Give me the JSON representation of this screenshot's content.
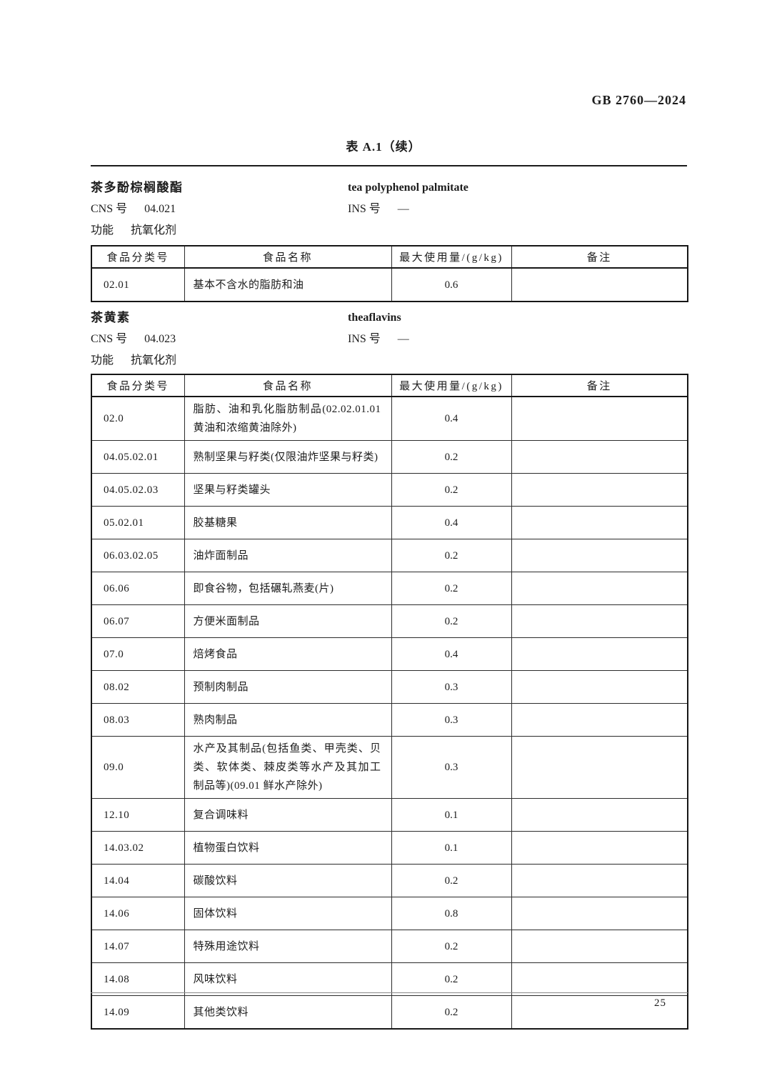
{
  "page": {
    "doc_code": "GB 2760—2024",
    "table_title": "表 A.1（续）",
    "page_number": "25"
  },
  "table_headers": [
    "食品分类号",
    "食品名称",
    "最大使用量/(g/kg)",
    "备注"
  ],
  "sections": [
    {
      "name_zh": "茶多酚棕榈酸酯",
      "name_en": "tea polyphenol palmitate",
      "cns_label": "CNS 号",
      "cns_value": "04.021",
      "ins_label": "INS 号",
      "ins_value": "—",
      "function_label": "功能",
      "function_value": "抗氧化剂",
      "rows": [
        {
          "code": "02.01",
          "food": "基本不含水的脂肪和油",
          "max": "0.6",
          "note": ""
        }
      ]
    },
    {
      "name_zh": "茶黄素",
      "name_en": "theaflavins",
      "cns_label": "CNS 号",
      "cns_value": "04.023",
      "ins_label": "INS 号",
      "ins_value": "—",
      "function_label": "功能",
      "function_value": "抗氧化剂",
      "rows": [
        {
          "code": "02.0",
          "food": "脂肪、油和乳化脂肪制品(02.02.01.01 黄油和浓缩黄油除外)",
          "max": "0.4",
          "note": ""
        },
        {
          "code": "04.05.02.01",
          "food": "熟制坚果与籽类(仅限油炸坚果与籽类)",
          "max": "0.2",
          "note": ""
        },
        {
          "code": "04.05.02.03",
          "food": "坚果与籽类罐头",
          "max": "0.2",
          "note": ""
        },
        {
          "code": "05.02.01",
          "food": "胶基糖果",
          "max": "0.4",
          "note": ""
        },
        {
          "code": "06.03.02.05",
          "food": "油炸面制品",
          "max": "0.2",
          "note": ""
        },
        {
          "code": "06.06",
          "food": "即食谷物，包括碾轧燕麦(片)",
          "max": "0.2",
          "note": ""
        },
        {
          "code": "06.07",
          "food": "方便米面制品",
          "max": "0.2",
          "note": ""
        },
        {
          "code": "07.0",
          "food": "焙烤食品",
          "max": "0.4",
          "note": ""
        },
        {
          "code": "08.02",
          "food": "预制肉制品",
          "max": "0.3",
          "note": ""
        },
        {
          "code": "08.03",
          "food": "熟肉制品",
          "max": "0.3",
          "note": ""
        },
        {
          "code": "09.0",
          "food": "水产及其制品(包括鱼类、甲壳类、贝类、软体类、棘皮类等水产及其加工制品等)(09.01 鲜水产除外)",
          "max": "0.3",
          "note": ""
        },
        {
          "code": "12.10",
          "food": "复合调味料",
          "max": "0.1",
          "note": ""
        },
        {
          "code": "14.03.02",
          "food": "植物蛋白饮料",
          "max": "0.1",
          "note": ""
        },
        {
          "code": "14.04",
          "food": "碳酸饮料",
          "max": "0.2",
          "note": ""
        },
        {
          "code": "14.06",
          "food": "固体饮料",
          "max": "0.8",
          "note": ""
        },
        {
          "code": "14.07",
          "food": "特殊用途饮料",
          "max": "0.2",
          "note": ""
        },
        {
          "code": "14.08",
          "food": "风味饮料",
          "max": "0.2",
          "note": ""
        },
        {
          "code": "14.09",
          "food": "其他类饮料",
          "max": "0.2",
          "note": ""
        }
      ]
    }
  ]
}
